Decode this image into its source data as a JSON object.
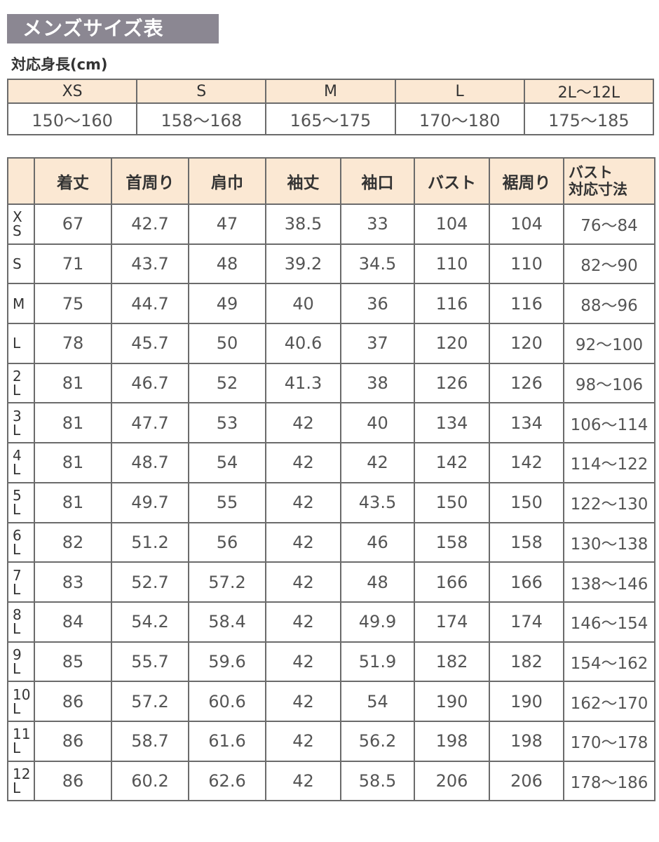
{
  "title": "メンズサイズ表",
  "height_table": {
    "caption": "対応身長(cm)",
    "sizes": [
      "XS",
      "S",
      "M",
      "L",
      "2L〜12L"
    ],
    "heights": [
      "150〜160",
      "158〜168",
      "165〜175",
      "170〜180",
      "175〜185"
    ]
  },
  "size_table": {
    "headers": [
      "",
      "着丈",
      "首周り",
      "肩巾",
      "袖丈",
      "袖口",
      "バスト",
      "裾周り",
      "バスト\n対応寸法"
    ],
    "rows": [
      [
        "X\nS",
        "67",
        "42.7",
        "47",
        "38.5",
        "33",
        "104",
        "104",
        "76〜84"
      ],
      [
        "S",
        "71",
        "43.7",
        "48",
        "39.2",
        "34.5",
        "110",
        "110",
        "82〜90"
      ],
      [
        "M",
        "75",
        "44.7",
        "49",
        "40",
        "36",
        "116",
        "116",
        "88〜96"
      ],
      [
        "L",
        "78",
        "45.7",
        "50",
        "40.6",
        "37",
        "120",
        "120",
        "92〜100"
      ],
      [
        "2\nL",
        "81",
        "46.7",
        "52",
        "41.3",
        "38",
        "126",
        "126",
        "98〜106"
      ],
      [
        "3\nL",
        "81",
        "47.7",
        "53",
        "42",
        "40",
        "134",
        "134",
        "106〜114"
      ],
      [
        "4\nL",
        "81",
        "48.7",
        "54",
        "42",
        "42",
        "142",
        "142",
        "114〜122"
      ],
      [
        "5\nL",
        "81",
        "49.7",
        "55",
        "42",
        "43.5",
        "150",
        "150",
        "122〜130"
      ],
      [
        "6\nL",
        "82",
        "51.2",
        "56",
        "42",
        "46",
        "158",
        "158",
        "130〜138"
      ],
      [
        "7\nL",
        "83",
        "52.7",
        "57.2",
        "42",
        "48",
        "166",
        "166",
        "138〜146"
      ],
      [
        "8\nL",
        "84",
        "54.2",
        "58.4",
        "42",
        "49.9",
        "174",
        "174",
        "146〜154"
      ],
      [
        "9\nL",
        "85",
        "55.7",
        "59.6",
        "42",
        "51.9",
        "182",
        "182",
        "154〜162"
      ],
      [
        "10\nL",
        "86",
        "57.2",
        "60.6",
        "42",
        "54",
        "190",
        "190",
        "162〜170"
      ],
      [
        "11\nL",
        "86",
        "58.7",
        "61.6",
        "42",
        "56.2",
        "198",
        "198",
        "170〜178"
      ],
      [
        "12\nL",
        "86",
        "60.2",
        "62.6",
        "42",
        "58.5",
        "206",
        "206",
        "178〜186"
      ]
    ]
  },
  "colors": {
    "title_bg": "#8b8792",
    "header_bg": "#fbe8d3",
    "border": "#6b6b6b"
  }
}
